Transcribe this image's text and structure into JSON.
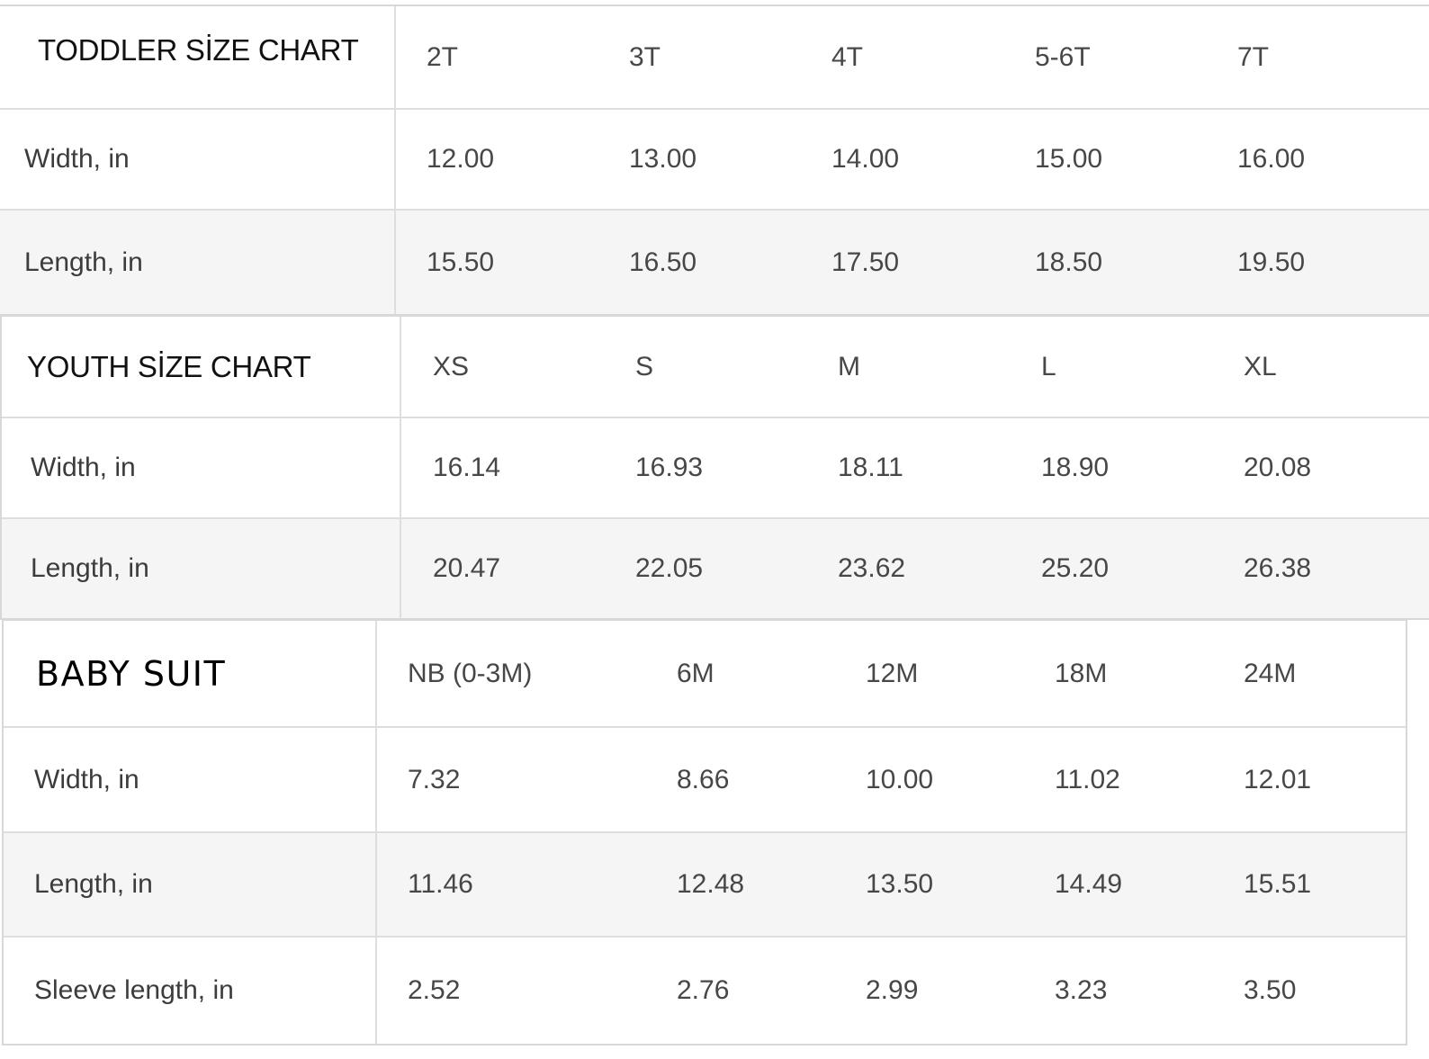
{
  "toddler": {
    "title": "TODDLER SİZE CHART",
    "sizes": [
      "2T",
      "3T",
      "4T",
      "5-6T",
      "7T"
    ],
    "rows": [
      {
        "label": "Width, in",
        "values": [
          "12.00",
          "13.00",
          "14.00",
          "15.00",
          "16.00"
        ]
      },
      {
        "label": "Length, in",
        "values": [
          "15.50",
          "16.50",
          "17.50",
          "18.50",
          "19.50"
        ]
      }
    ]
  },
  "youth": {
    "title": "YOUTH SİZE CHART",
    "sizes": [
      "XS",
      "S",
      "M",
      "L",
      "XL"
    ],
    "rows": [
      {
        "label": "Width, in",
        "values": [
          "16.14",
          "16.93",
          "18.11",
          "18.90",
          "20.08"
        ]
      },
      {
        "label": "Length, in",
        "values": [
          "20.47",
          "22.05",
          "23.62",
          "25.20",
          "26.38"
        ]
      }
    ]
  },
  "baby": {
    "title": "BABY SUIT",
    "sizes": [
      "NB (0-3M)",
      "6M",
      "12M",
      "18M",
      "24M"
    ],
    "rows": [
      {
        "label": "Width, in",
        "values": [
          "7.32",
          "8.66",
          "10.00",
          "11.02",
          "12.01"
        ]
      },
      {
        "label": "Length, in",
        "values": [
          "11.46",
          "12.48",
          "13.50",
          "14.49",
          "15.51"
        ]
      },
      {
        "label": "Sleeve length, in",
        "values": [
          "2.52",
          "2.76",
          "2.99",
          "3.23",
          "3.50"
        ]
      }
    ]
  }
}
